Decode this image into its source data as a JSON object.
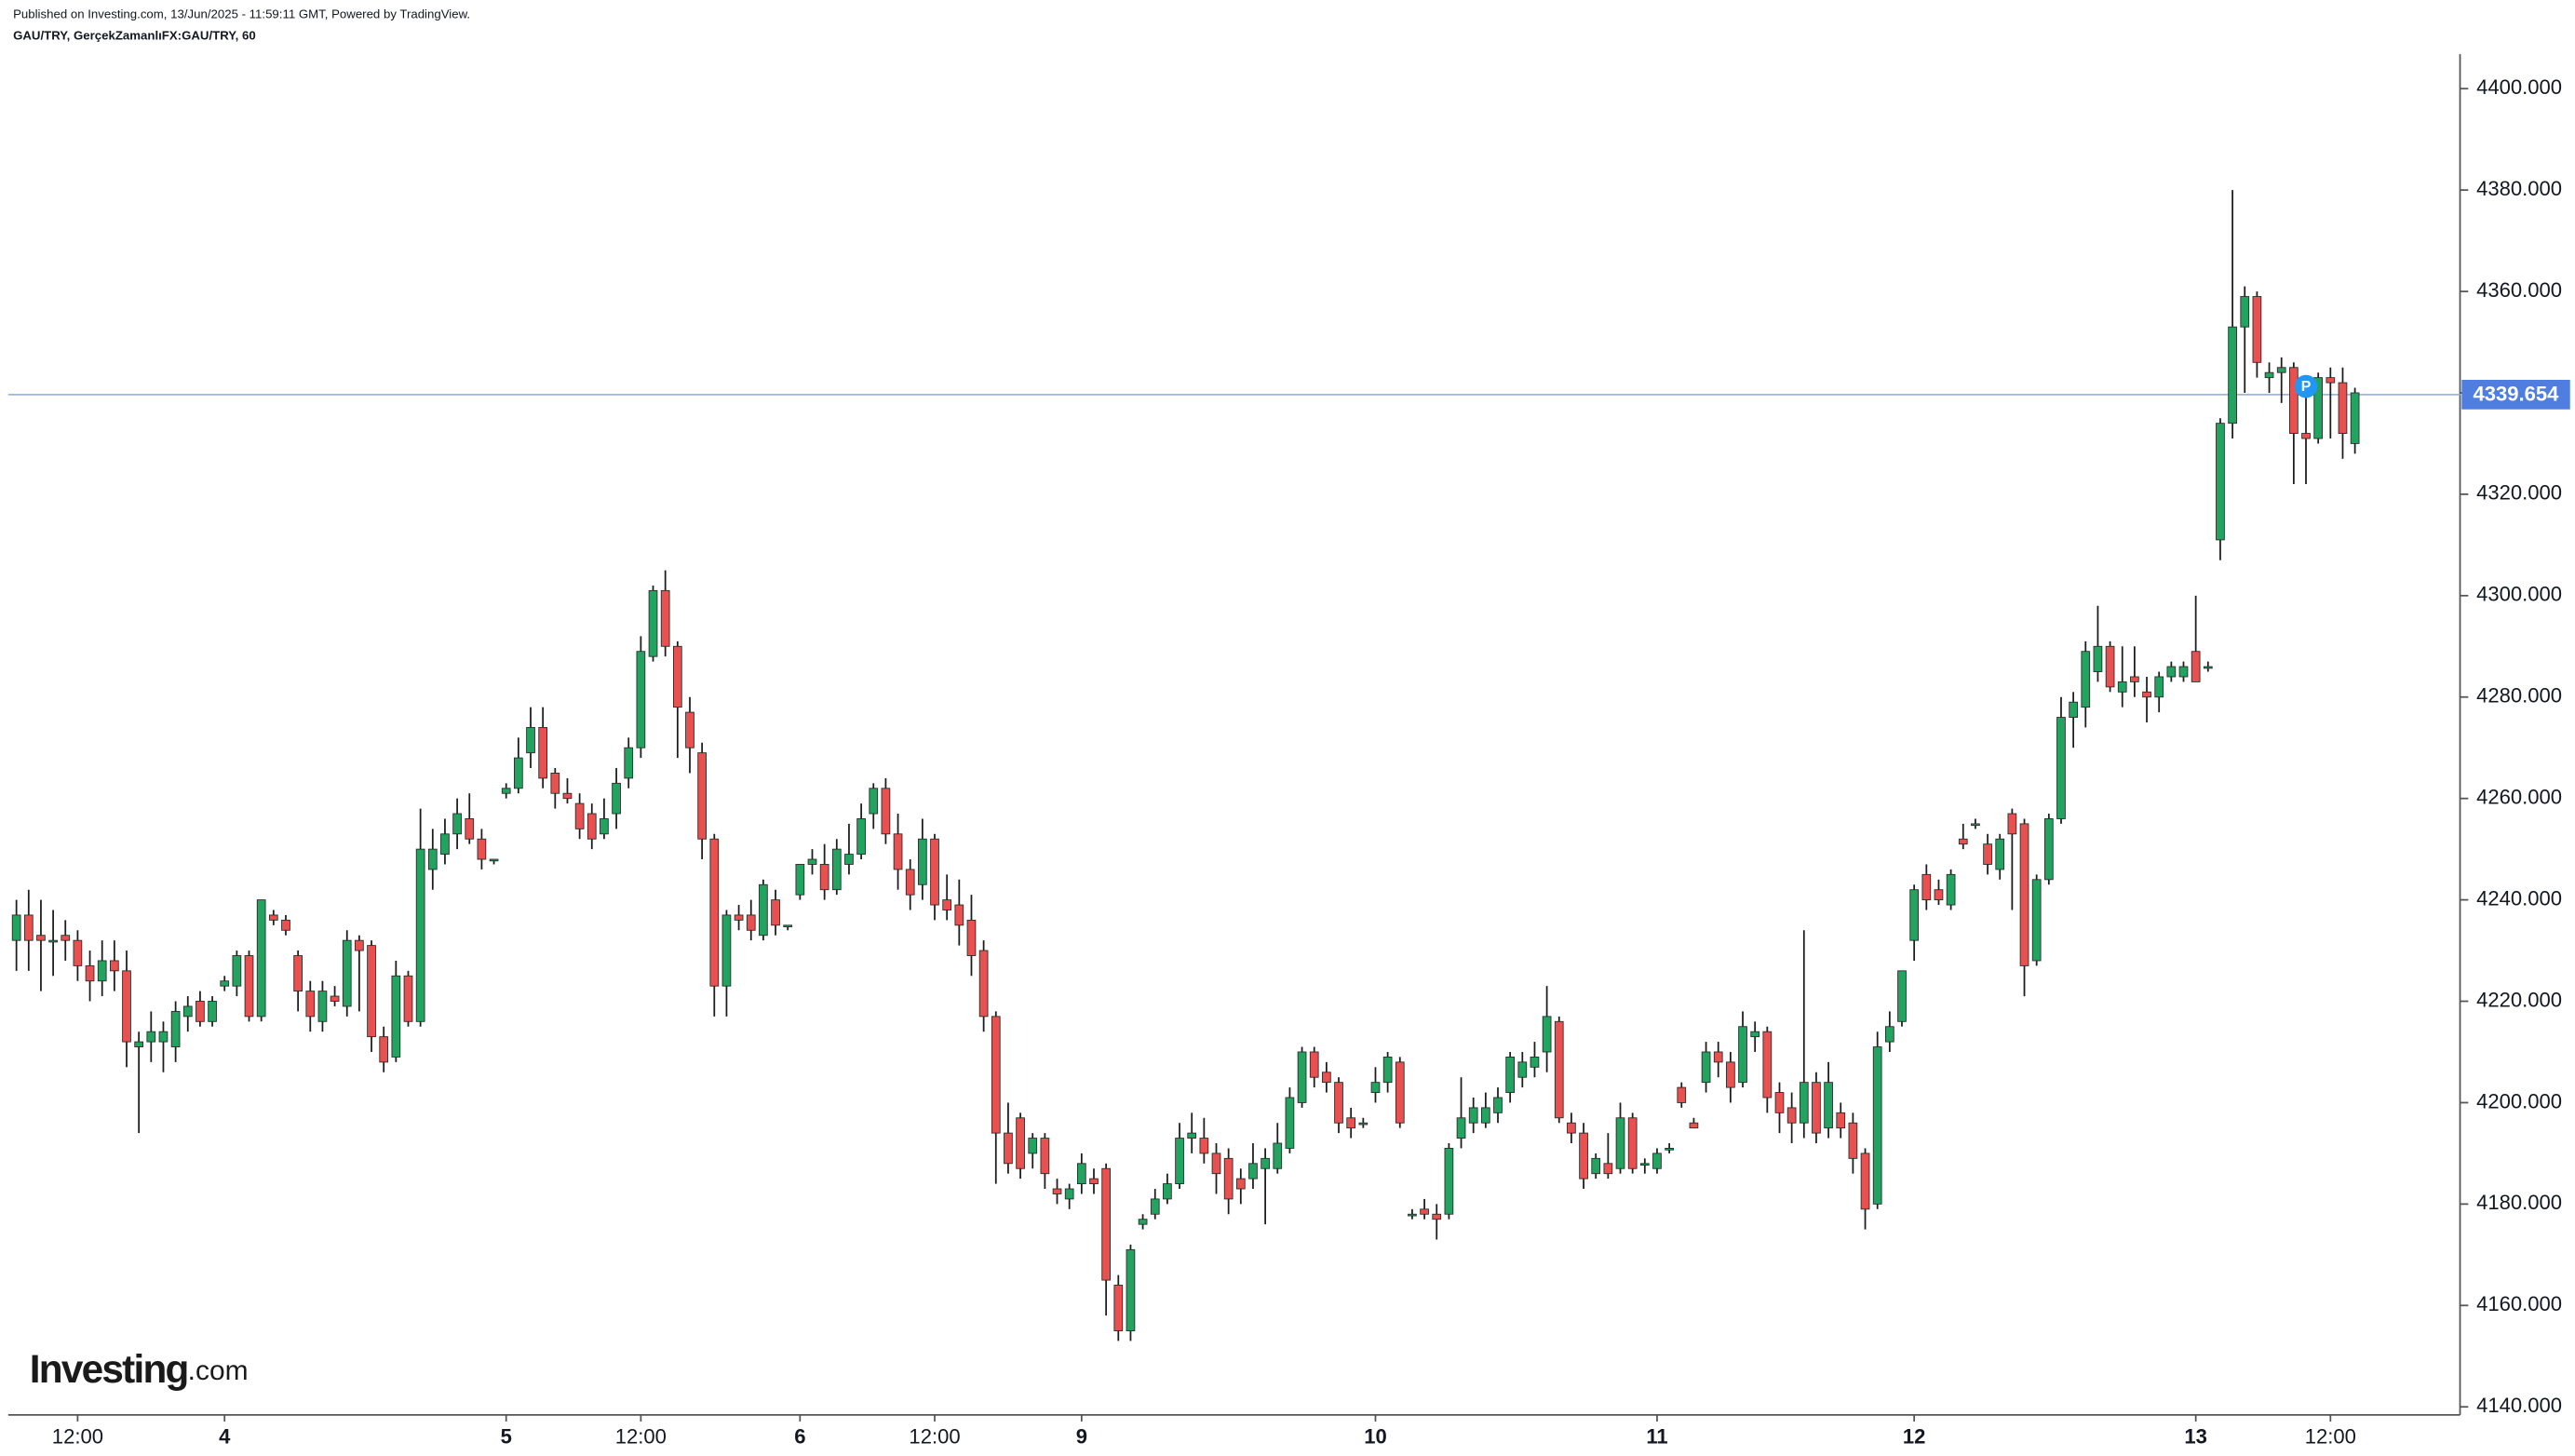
{
  "header": {
    "published": "Published on Investing.com, 13/Jun/2025 - 11:59:11 GMT, Powered by TradingView.",
    "symbol": "GAU/TRY, GerçekZamanlıFX:GAU/TRY, 60"
  },
  "logo": {
    "name": "Investing",
    "suffix": ".com"
  },
  "chart_data": {
    "type": "candlestick",
    "categories": [
      null,
      null,
      null,
      null,
      null,
      "12:00",
      null,
      null,
      null,
      null,
      null,
      null,
      null,
      null,
      null,
      null,
      null,
      "4",
      null,
      null,
      null,
      null,
      null,
      null,
      null,
      null,
      null,
      null,
      null,
      null,
      null,
      null,
      null,
      null,
      null,
      null,
      null,
      null,
      null,
      null,
      "5",
      null,
      null,
      null,
      null,
      null,
      null,
      null,
      null,
      null,
      null,
      "12:00",
      null,
      null,
      null,
      null,
      null,
      null,
      null,
      null,
      null,
      null,
      null,
      null,
      "6",
      null,
      null,
      null,
      null,
      null,
      null,
      null,
      null,
      null,
      null,
      "12:00",
      null,
      null,
      null,
      null,
      null,
      null,
      null,
      null,
      null,
      null,
      null,
      "9",
      null,
      null,
      null,
      null,
      null,
      null,
      null,
      null,
      null,
      null,
      null,
      null,
      null,
      null,
      null,
      null,
      null,
      null,
      null,
      null,
      null,
      null,
      null,
      "10",
      null,
      null,
      null,
      null,
      null,
      null,
      null,
      null,
      null,
      null,
      null,
      null,
      null,
      null,
      null,
      null,
      null,
      null,
      null,
      null,
      null,
      null,
      "11",
      null,
      null,
      null,
      null,
      null,
      null,
      null,
      null,
      null,
      null,
      null,
      null,
      null,
      null,
      null,
      null,
      null,
      null,
      null,
      null,
      "12",
      null,
      null,
      null,
      null,
      null,
      null,
      null,
      null,
      null,
      null,
      null,
      null,
      null,
      null,
      null,
      null,
      null,
      null,
      null,
      null,
      null,
      null,
      "13",
      null,
      null,
      null,
      null,
      null,
      null,
      null,
      null,
      null,
      null,
      "12:00",
      null,
      null
    ],
    "ohlc": [
      [
        4232,
        4240,
        4226,
        4237
      ],
      [
        4237,
        4242,
        4226,
        4232
      ],
      [
        4233,
        4240,
        4222,
        4232
      ],
      [
        4232,
        4238,
        4225,
        4232
      ],
      [
        4233,
        4236,
        4228,
        4232
      ],
      [
        4232,
        4234,
        4224,
        4227
      ],
      [
        4227,
        4230,
        4220,
        4224
      ],
      [
        4224,
        4232,
        4221,
        4228
      ],
      [
        4228,
        4232,
        4222,
        4226
      ],
      [
        4226,
        4230,
        4207,
        4212
      ],
      [
        4211,
        4214,
        4194,
        4212
      ],
      [
        4212,
        4218,
        4208,
        4214
      ],
      [
        4212,
        4216,
        4206,
        4214
      ],
      [
        4211,
        4220,
        4208,
        4218
      ],
      [
        4217,
        4221,
        4214,
        4219
      ],
      [
        4220,
        4222,
        4215,
        4216
      ],
      [
        4216,
        4221,
        4215,
        4220
      ],
      [
        4223,
        4225,
        4222,
        4224
      ],
      [
        4223,
        4230,
        4221,
        4229
      ],
      [
        4229,
        4230,
        4216,
        4217
      ],
      [
        4217,
        4240,
        4216,
        4240
      ],
      [
        4237,
        4238,
        4235,
        4236
      ],
      [
        4236,
        4237,
        4233,
        4234
      ],
      [
        4229,
        4230,
        4218,
        4222
      ],
      [
        4222,
        4224,
        4214,
        4217
      ],
      [
        4216,
        4224,
        4214,
        4222
      ],
      [
        4221,
        4223,
        4219,
        4220
      ],
      [
        4219,
        4234,
        4217,
        4232
      ],
      [
        4232,
        4233,
        4218,
        4230
      ],
      [
        4231,
        4232,
        4210,
        4213
      ],
      [
        4213,
        4215,
        4206,
        4208
      ],
      [
        4209,
        4228,
        4208,
        4225
      ],
      [
        4225,
        4226,
        4215,
        4216
      ],
      [
        4216,
        4258,
        4215,
        4250
      ],
      [
        4246,
        4254,
        4242,
        4250
      ],
      [
        4249,
        4256,
        4247,
        4253
      ],
      [
        4253,
        4260,
        4250,
        4257
      ],
      [
        4256,
        4261,
        4251,
        4252
      ],
      [
        4252,
        4254,
        4246,
        4248
      ],
      [
        4248,
        4248,
        4247,
        4248
      ],
      [
        4261,
        4263,
        4260,
        4262
      ],
      [
        4262,
        4272,
        4261,
        4268
      ],
      [
        4269,
        4278,
        4266,
        4274
      ],
      [
        4274,
        4278,
        4262,
        4264
      ],
      [
        4265,
        4266,
        4258,
        4261
      ],
      [
        4261,
        4264,
        4259,
        4260
      ],
      [
        4259,
        4261,
        4252,
        4254
      ],
      [
        4257,
        4259,
        4250,
        4252
      ],
      [
        4253,
        4260,
        4252,
        4256
      ],
      [
        4257,
        4266,
        4254,
        4263
      ],
      [
        4264,
        4272,
        4262,
        4270
      ],
      [
        4270,
        4292,
        4268,
        4289
      ],
      [
        4288,
        4302,
        4287,
        4301
      ],
      [
        4301,
        4305,
        4288,
        4290
      ],
      [
        4290,
        4291,
        4268,
        4278
      ],
      [
        4277,
        4280,
        4265,
        4270
      ],
      [
        4269,
        4271,
        4248,
        4252
      ],
      [
        4252,
        4253,
        4217,
        4223
      ],
      [
        4223,
        4238,
        4217,
        4237
      ],
      [
        4237,
        4239,
        4234,
        4236
      ],
      [
        4237,
        4240,
        4232,
        4234
      ],
      [
        4233,
        4244,
        4232,
        4243
      ],
      [
        4240,
        4242,
        4233,
        4235
      ],
      [
        4235,
        4235,
        4234,
        4235
      ],
      [
        4241,
        4247,
        4240,
        4247
      ],
      [
        4247,
        4250,
        4245,
        4248
      ],
      [
        4247,
        4251,
        4240,
        4242
      ],
      [
        4242,
        4252,
        4241,
        4250
      ],
      [
        4247,
        4255,
        4245,
        4249
      ],
      [
        4249,
        4259,
        4248,
        4256
      ],
      [
        4257,
        4263,
        4254,
        4262
      ],
      [
        4262,
        4264,
        4251,
        4253
      ],
      [
        4253,
        4257,
        4242,
        4246
      ],
      [
        4246,
        4248,
        4238,
        4241
      ],
      [
        4243,
        4256,
        4240,
        4252
      ],
      [
        4252,
        4253,
        4236,
        4239
      ],
      [
        4240,
        4245,
        4236,
        4238
      ],
      [
        4239,
        4244,
        4231,
        4235
      ],
      [
        4236,
        4241,
        4225,
        4229
      ],
      [
        4230,
        4232,
        4214,
        4217
      ],
      [
        4217,
        4218,
        4184,
        4194
      ],
      [
        4194,
        4200,
        4186,
        4188
      ],
      [
        4197,
        4198,
        4185,
        4187
      ],
      [
        4190,
        4194,
        4187,
        4193
      ],
      [
        4193,
        4194,
        4183,
        4186
      ],
      [
        4183,
        4185,
        4180,
        4182
      ],
      [
        4181,
        4184,
        4179,
        4183
      ],
      [
        4184,
        4190,
        4182,
        4188
      ],
      [
        4185,
        4187,
        4182,
        4184
      ],
      [
        4187,
        4188,
        4158,
        4165
      ],
      [
        4164,
        4166,
        4153,
        4155
      ],
      [
        4155,
        4172,
        4153,
        4171
      ],
      [
        4176,
        4178,
        4175,
        4177
      ],
      [
        4178,
        4183,
        4177,
        4181
      ],
      [
        4181,
        4186,
        4180,
        4184
      ],
      [
        4184,
        4196,
        4183,
        4193
      ],
      [
        4193,
        4198,
        4190,
        4194
      ],
      [
        4193,
        4197,
        4188,
        4190
      ],
      [
        4190,
        4192,
        4182,
        4186
      ],
      [
        4189,
        4191,
        4178,
        4181
      ],
      [
        4185,
        4187,
        4180,
        4183
      ],
      [
        4185,
        4192,
        4183,
        4188
      ],
      [
        4187,
        4191,
        4176,
        4189
      ],
      [
        4187,
        4196,
        4186,
        4192
      ],
      [
        4191,
        4203,
        4190,
        4201
      ],
      [
        4200,
        4211,
        4199,
        4210
      ],
      [
        4210,
        4211,
        4203,
        4205
      ],
      [
        4206,
        4208,
        4202,
        4204
      ],
      [
        4204,
        4205,
        4194,
        4196
      ],
      [
        4197,
        4199,
        4193,
        4195
      ],
      [
        4196,
        4197,
        4195,
        4196
      ],
      [
        4202,
        4207,
        4200,
        4204
      ],
      [
        4204,
        4210,
        4202,
        4209
      ],
      [
        4208,
        4209,
        4195,
        4196
      ],
      [
        4178,
        4179,
        4177,
        4178
      ],
      [
        4179,
        4181,
        4177,
        4178
      ],
      [
        4178,
        4180,
        4173,
        4177
      ],
      [
        4178,
        4192,
        4177,
        4191
      ],
      [
        4193,
        4205,
        4191,
        4197
      ],
      [
        4196,
        4201,
        4194,
        4199
      ],
      [
        4196,
        4202,
        4195,
        4199
      ],
      [
        4198,
        4203,
        4196,
        4201
      ],
      [
        4202,
        4210,
        4200,
        4209
      ],
      [
        4205,
        4210,
        4203,
        4208
      ],
      [
        4207,
        4212,
        4205,
        4209
      ],
      [
        4210,
        4223,
        4206,
        4217
      ],
      [
        4216,
        4217,
        4196,
        4197
      ],
      [
        4196,
        4198,
        4192,
        4194
      ],
      [
        4194,
        4196,
        4183,
        4185
      ],
      [
        4186,
        4190,
        4185,
        4189
      ],
      [
        4188,
        4194,
        4185,
        4186
      ],
      [
        4187,
        4200,
        4186,
        4197
      ],
      [
        4197,
        4198,
        4186,
        4187
      ],
      [
        4188,
        4189,
        4186,
        4188
      ],
      [
        4187,
        4191,
        4186,
        4190
      ],
      [
        4191,
        4192,
        4190,
        4191
      ],
      [
        4203,
        4204,
        4199,
        4200
      ],
      [
        4196,
        4197,
        4195,
        4195
      ],
      [
        4204,
        4212,
        4202,
        4210
      ],
      [
        4210,
        4212,
        4205,
        4208
      ],
      [
        4208,
        4210,
        4200,
        4203
      ],
      [
        4204,
        4218,
        4203,
        4215
      ],
      [
        4213,
        4216,
        4210,
        4214
      ],
      [
        4214,
        4215,
        4198,
        4201
      ],
      [
        4202,
        4204,
        4194,
        4198
      ],
      [
        4199,
        4202,
        4192,
        4196
      ],
      [
        4196,
        4234,
        4193,
        4204
      ],
      [
        4204,
        4206,
        4192,
        4194
      ],
      [
        4195,
        4208,
        4193,
        4204
      ],
      [
        4198,
        4200,
        4193,
        4195
      ],
      [
        4196,
        4198,
        4186,
        4189
      ],
      [
        4190,
        4191,
        4175,
        4179
      ],
      [
        4180,
        4214,
        4179,
        4211
      ],
      [
        4212,
        4218,
        4210,
        4215
      ],
      [
        4216,
        4226,
        4215,
        4226
      ],
      [
        4232,
        4243,
        4228,
        4242
      ],
      [
        4245,
        4247,
        4238,
        4240
      ],
      [
        4242,
        4244,
        4239,
        4240
      ],
      [
        4239,
        4246,
        4238,
        4245
      ],
      [
        4252,
        4255,
        4250,
        4251
      ],
      [
        4255,
        4256,
        4254,
        4255
      ],
      [
        4251,
        4253,
        4245,
        4247
      ],
      [
        4246,
        4253,
        4244,
        4252
      ],
      [
        4257,
        4258,
        4238,
        4253
      ],
      [
        4255,
        4256,
        4221,
        4227
      ],
      [
        4228,
        4245,
        4227,
        4244
      ],
      [
        4244,
        4257,
        4243,
        4256
      ],
      [
        4256,
        4280,
        4255,
        4276
      ],
      [
        4276,
        4281,
        4270,
        4279
      ],
      [
        4278,
        4291,
        4274,
        4289
      ],
      [
        4285,
        4298,
        4283,
        4290
      ],
      [
        4290,
        4291,
        4281,
        4282
      ],
      [
        4281,
        4290,
        4278,
        4283
      ],
      [
        4284,
        4290,
        4280,
        4283
      ],
      [
        4281,
        4284,
        4275,
        4280
      ],
      [
        4280,
        4285,
        4277,
        4284
      ],
      [
        4284,
        4287,
        4283,
        4286
      ],
      [
        4284,
        4287,
        4283,
        4286
      ],
      [
        4289,
        4300,
        4283,
        4283
      ],
      [
        4286,
        4287,
        4285,
        4286
      ],
      [
        4311,
        4335,
        4307,
        4334
      ],
      [
        4334,
        4380,
        4331,
        4353
      ],
      [
        4353,
        4361,
        4340,
        4359
      ],
      [
        4359,
        4360,
        4343,
        4346
      ],
      [
        4343,
        4346,
        4340,
        4344
      ],
      [
        4344,
        4347,
        4338,
        4345
      ],
      [
        4345,
        4346,
        4322,
        4332
      ],
      [
        4332,
        4342,
        4322,
        4331
      ],
      [
        4331,
        4344,
        4330,
        4343
      ],
      [
        4343,
        4345,
        4331,
        4342
      ],
      [
        4342,
        4345,
        4327,
        4332
      ],
      [
        4330,
        4341,
        4328,
        4340
      ]
    ],
    "up_color": "#22a460",
    "down_color": "#e8514f",
    "wick_color": "#1c1c1c",
    "ylim": [
      4138.4,
      4406.8
    ],
    "yticks": [
      {
        "value": 4140,
        "label": "4140.000"
      },
      {
        "value": 4160,
        "label": "4160.000"
      },
      {
        "value": 4180,
        "label": "4180.000"
      },
      {
        "value": 4200,
        "label": "4200.000"
      },
      {
        "value": 4220,
        "label": "4220.000"
      },
      {
        "value": 4240,
        "label": "4240.000"
      },
      {
        "value": 4260,
        "label": "4260.000"
      },
      {
        "value": 4280,
        "label": "4280.000"
      },
      {
        "value": 4300,
        "label": "4300.000"
      },
      {
        "value": 4320,
        "label": "4320.000"
      },
      {
        "value": 4340,
        "label": "4340.000"
      },
      {
        "value": 4360,
        "label": "4360.000"
      },
      {
        "value": 4380,
        "label": "4380.000"
      },
      {
        "value": 4400,
        "label": "4400.000"
      }
    ],
    "grid": false,
    "last_price": {
      "value": 4339.654,
      "label": "4339.654"
    },
    "last_price_color": "#4f7ee0",
    "marker_label": "P"
  }
}
